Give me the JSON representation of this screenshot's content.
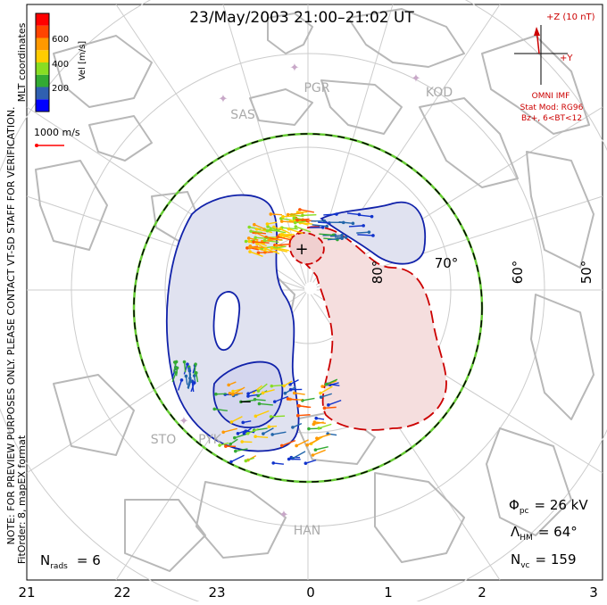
{
  "title": "23/May/2003 21:00–21:02 UT",
  "colorbar": {
    "unit_label": "Vel [m/s]",
    "ticks": [
      "600",
      "400",
      "200"
    ],
    "colors": [
      "#0000ff",
      "#3060b0",
      "#33aa33",
      "#88dd22",
      "#ffcc00",
      "#ff9900",
      "#ff4400",
      "#ff0000"
    ],
    "coord_label": "MLT coordinates"
  },
  "reference_vector": {
    "label": "1000 m/s",
    "color": "#ff0000"
  },
  "imf": {
    "z_label": "+Z (10 nT)",
    "y_label": "+Y",
    "source_label": "OMNI IMF",
    "model_label": "Stat Mod: RG96",
    "condition_label": "Bz+, 6<BT<12",
    "color": "#cc0000"
  },
  "stations": [
    "PGR",
    "KOD",
    "SAS",
    "STO",
    "PYK",
    "HAN"
  ],
  "latitude_labels": [
    "80°",
    "70°",
    "60°",
    "50°"
  ],
  "potential_markers": {
    "max": "+",
    "min": "−"
  },
  "side_note": {
    "line1": "NOTE: FOR PREVIEW PURPOSES ONLY. PLEASE CONTACT VT-SD STAFF FOR VERIFICATION.",
    "line2": "FitOrder: 8, mapEX format"
  },
  "stats": {
    "phi_label": "Φ",
    "phi_sub": "pc",
    "phi_value": "= 26 kV",
    "lambda_label": "Λ",
    "lambda_sub": "HM",
    "lambda_value": "= 64°",
    "nvc_label": "N",
    "nvc_sub": "vc",
    "nvc_value": "= 159",
    "nrads_label": "N",
    "nrads_sub": "rads",
    "nrads_value": "= 6"
  },
  "mlt_axis": [
    "21",
    "22",
    "23",
    "0",
    "1",
    "2",
    "3"
  ],
  "colors": {
    "convection_positive_fill": "#f5dede",
    "convection_positive_line": "#cc0000",
    "convection_negative_fill": "#e0e2f0",
    "convection_negative_line": "#1122aa",
    "boundary_green": "#66cc33",
    "landmass": "#b8b8b8",
    "grid": "#cccccc",
    "station": "#c8a8c8"
  }
}
